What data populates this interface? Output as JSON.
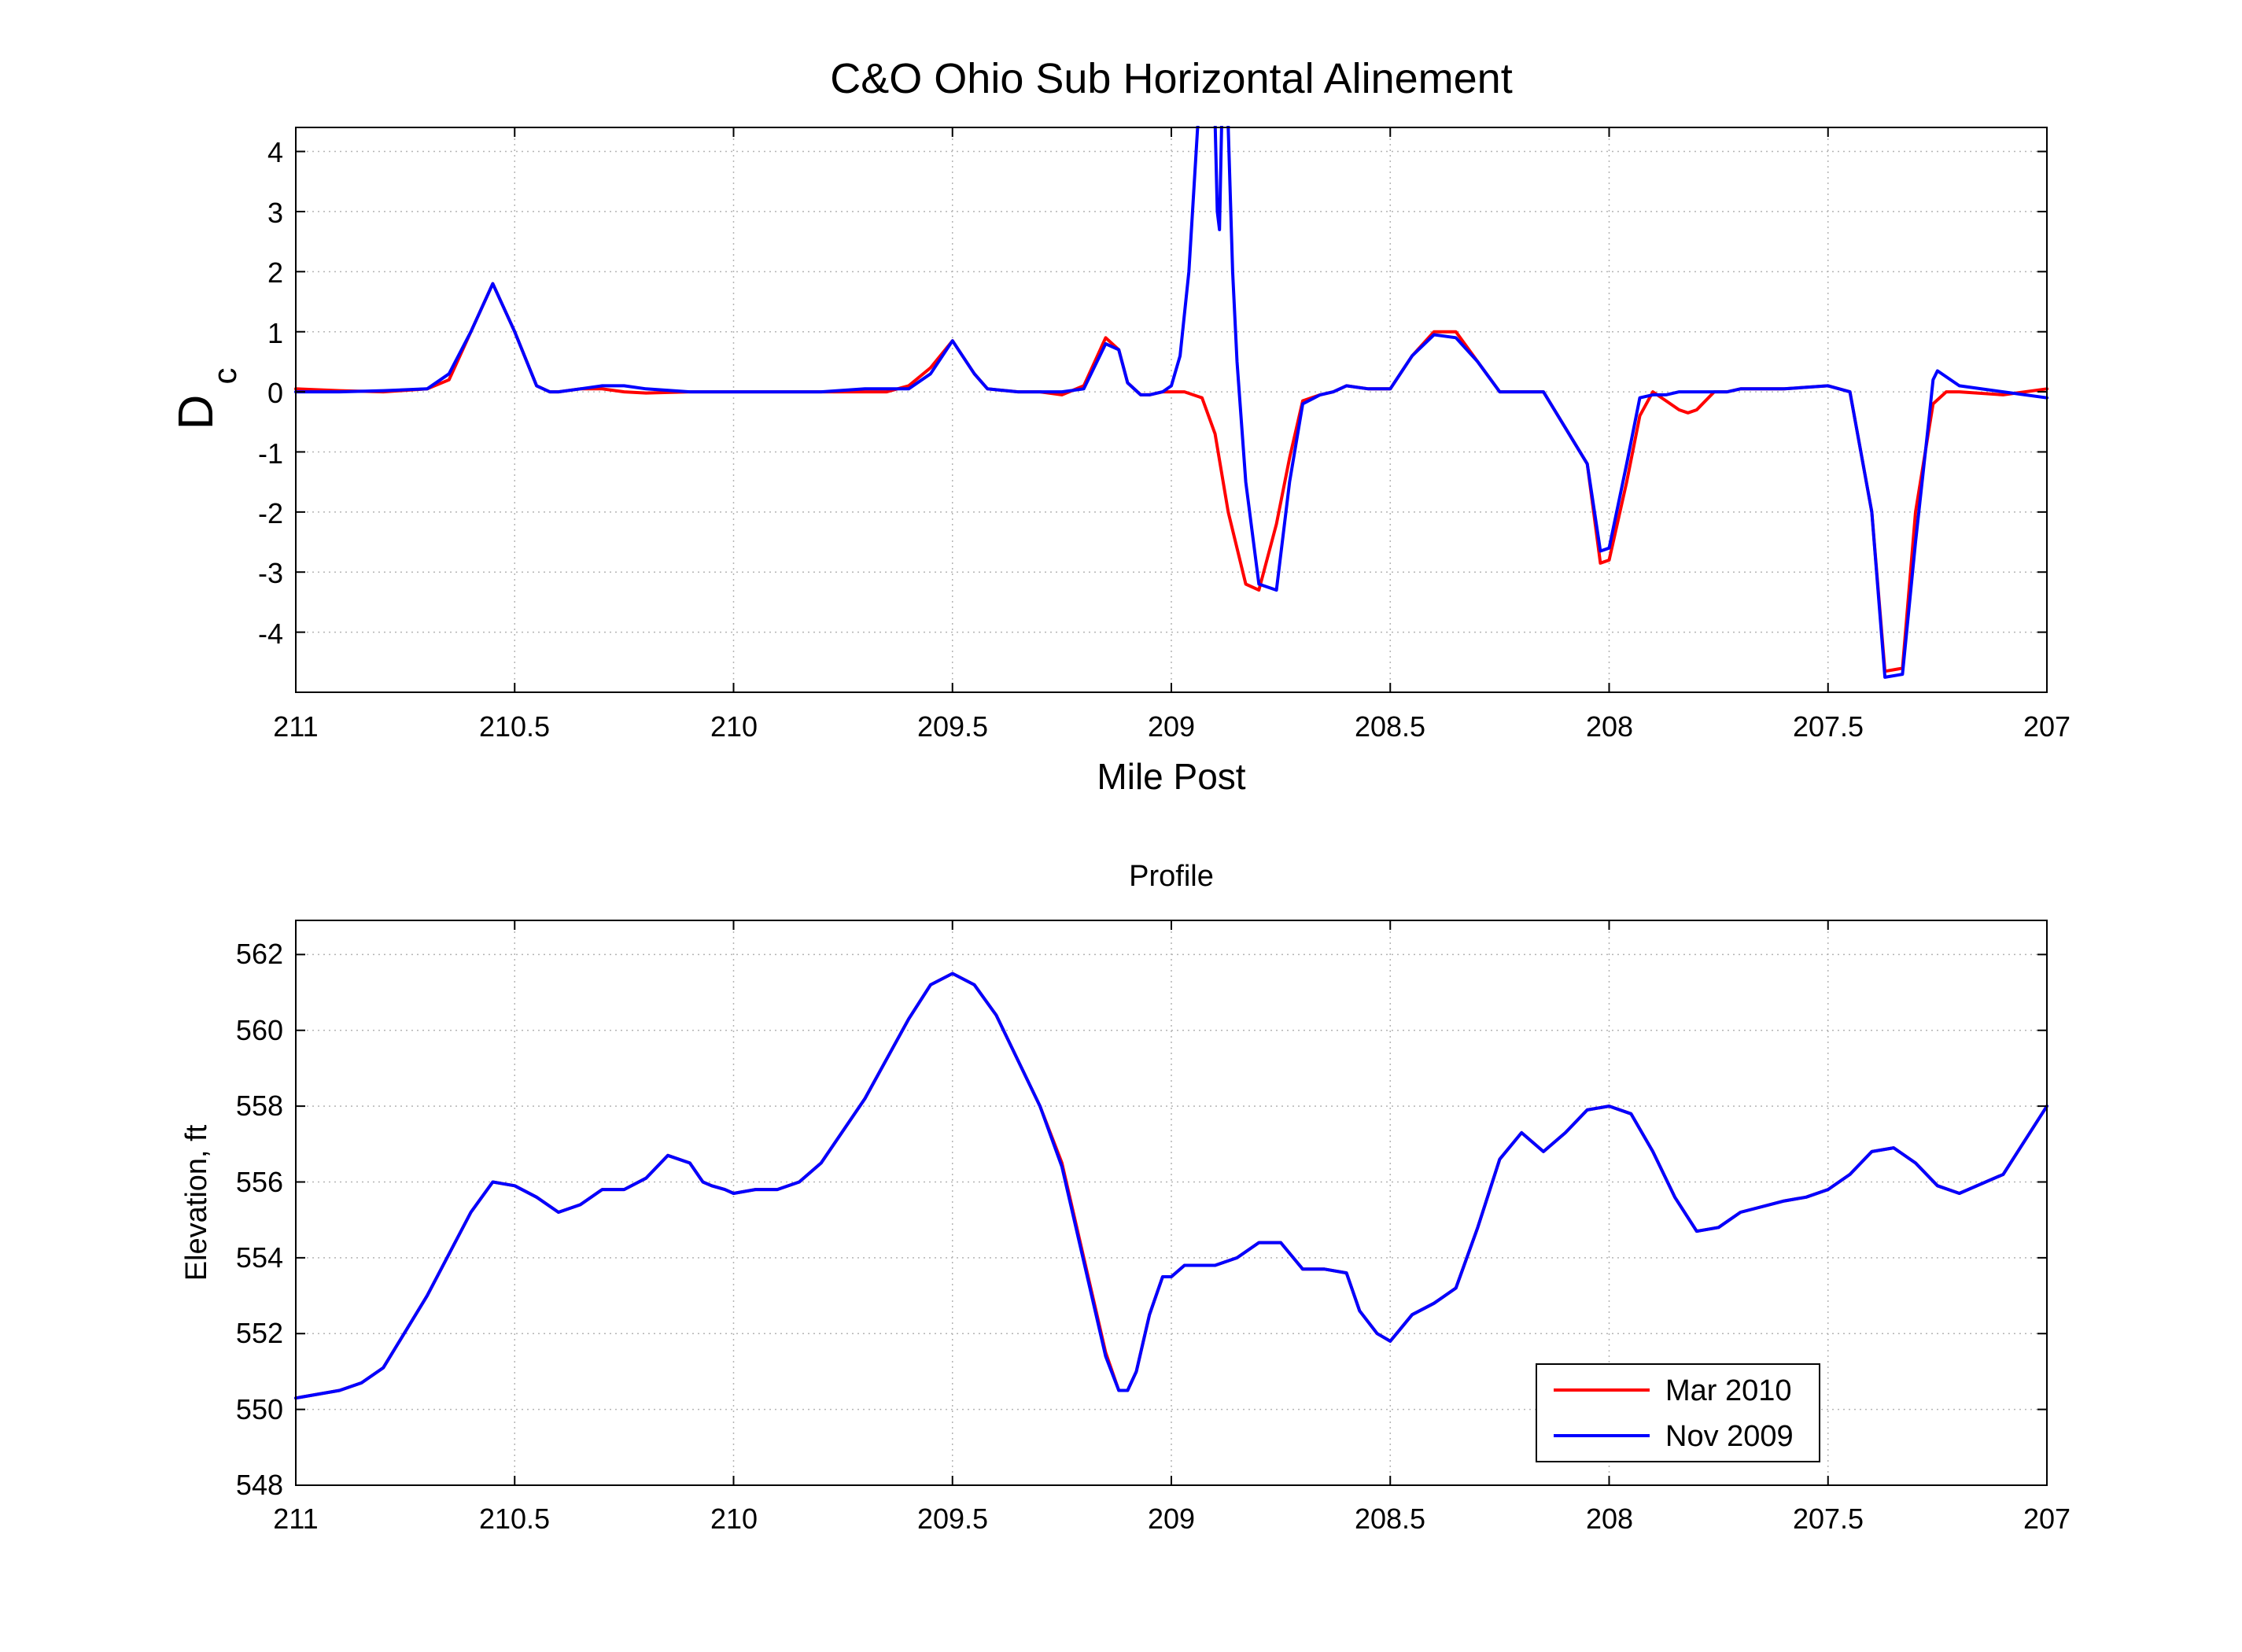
{
  "chart_data": [
    {
      "type": "line",
      "title": "C&O Ohio Sub Horizontal Alinement",
      "xlabel": "Mile Post",
      "ylabel": "D",
      "ylabel_subscript": "c",
      "xlim": [
        211,
        207
      ],
      "x_reversed": true,
      "ylim": [
        -5,
        4.4
      ],
      "xticks": [
        211,
        210.5,
        210,
        209.5,
        209,
        208.5,
        208,
        207.5,
        207
      ],
      "xtick_labels": [
        "211",
        "210.5",
        "210",
        "209.5",
        "209",
        "208.5",
        "208",
        "207.5",
        "207"
      ],
      "yticks": [
        -4,
        -3,
        -2,
        -1,
        0,
        1,
        2,
        3,
        4
      ],
      "ytick_labels": [
        "-4",
        "-3",
        "-2",
        "-1",
        "0",
        "1",
        "2",
        "3",
        "4"
      ],
      "grid": true,
      "series": [
        {
          "name": "Mar 2010",
          "color": "#ff0000",
          "x": [
            211,
            210.9,
            210.8,
            210.7,
            210.65,
            210.6,
            210.55,
            210.5,
            210.45,
            210.42,
            210.4,
            210.35,
            210.3,
            210.25,
            210.2,
            210.1,
            210,
            209.9,
            209.8,
            209.7,
            209.65,
            209.6,
            209.55,
            209.5,
            209.45,
            209.42,
            209.35,
            209.3,
            209.25,
            209.2,
            209.15,
            209.12,
            209.1,
            209.07,
            209.05,
            209.02,
            209,
            208.97,
            208.93,
            208.9,
            208.87,
            208.83,
            208.8,
            208.76,
            208.73,
            208.7,
            208.66,
            208.63,
            208.6,
            208.55,
            208.5,
            208.45,
            208.4,
            208.35,
            208.3,
            208.25,
            208.2,
            208.15,
            208.1,
            208.05,
            208.02,
            208,
            207.96,
            207.93,
            207.9,
            207.87,
            207.84,
            207.82,
            207.8,
            207.76,
            207.73,
            207.7,
            207.6,
            207.5,
            207.45,
            207.4,
            207.37,
            207.33,
            207.3,
            207.26,
            207.23,
            207.2,
            207.1,
            207
          ],
          "y": [
            0.05,
            0.02,
            0.0,
            0.05,
            0.2,
            1.0,
            1.8,
            1.0,
            0.1,
            0.0,
            0.0,
            0.05,
            0.05,
            0.0,
            -0.02,
            0.0,
            0.0,
            0.0,
            0.0,
            0.0,
            0.0,
            0.1,
            0.4,
            0.85,
            0.3,
            0.05,
            0.0,
            0.0,
            -0.05,
            0.1,
            0.9,
            0.7,
            0.15,
            -0.05,
            -0.05,
            0.0,
            0.0,
            0.0,
            -0.1,
            -0.7,
            -2.0,
            -3.2,
            -3.3,
            -2.2,
            -1.1,
            -0.15,
            -0.05,
            0.0,
            0.1,
            0.05,
            0.05,
            0.6,
            1.0,
            1.0,
            0.5,
            0.0,
            0.0,
            0.0,
            -0.6,
            -1.2,
            -2.85,
            -2.8,
            -1.5,
            -0.4,
            0.0,
            -0.15,
            -0.3,
            -0.35,
            -0.3,
            0.0,
            0.0,
            0.05,
            0.05,
            0.1,
            0.0,
            -2.0,
            -4.65,
            -4.6,
            -2.0,
            -0.2,
            0.0,
            0.0,
            -0.05,
            0.05
          ]
        },
        {
          "name": "Nov 2009",
          "color": "#0000ff",
          "x": [
            211,
            210.9,
            210.8,
            210.7,
            210.65,
            210.6,
            210.55,
            210.5,
            210.45,
            210.42,
            210.4,
            210.35,
            210.3,
            210.25,
            210.2,
            210.1,
            210,
            209.9,
            209.8,
            209.7,
            209.65,
            209.6,
            209.55,
            209.5,
            209.45,
            209.42,
            209.35,
            209.3,
            209.25,
            209.2,
            209.15,
            209.12,
            209.1,
            209.07,
            209.05,
            209.02,
            209,
            208.98,
            208.96,
            208.94,
            208.92,
            208.905,
            208.9,
            208.895,
            208.89,
            208.885,
            208.88,
            208.875,
            208.87,
            208.86,
            208.85,
            208.83,
            208.8,
            208.76,
            208.73,
            208.7,
            208.66,
            208.63,
            208.6,
            208.55,
            208.5,
            208.45,
            208.4,
            208.35,
            208.3,
            208.25,
            208.2,
            208.15,
            208.1,
            208.05,
            208.02,
            208,
            207.96,
            207.93,
            207.9,
            207.87,
            207.84,
            207.82,
            207.8,
            207.76,
            207.73,
            207.7,
            207.6,
            207.5,
            207.45,
            207.4,
            207.37,
            207.33,
            207.3,
            207.27,
            207.26,
            207.25,
            207.2,
            207.1,
            207
          ],
          "y": [
            0.0,
            0.0,
            0.02,
            0.05,
            0.3,
            1.0,
            1.8,
            1.0,
            0.1,
            0.0,
            0.0,
            0.05,
            0.1,
            0.1,
            0.05,
            0.0,
            0.0,
            0.0,
            0.0,
            0.05,
            0.05,
            0.05,
            0.3,
            0.85,
            0.3,
            0.05,
            0.0,
            0.0,
            0.0,
            0.05,
            0.8,
            0.7,
            0.15,
            -0.05,
            -0.05,
            0.0,
            0.1,
            0.6,
            2.0,
            4.4,
            5.5,
            5.5,
            4.5,
            3.0,
            2.7,
            4.5,
            5.5,
            5.5,
            4.4,
            2.0,
            0.5,
            -1.5,
            -3.2,
            -3.3,
            -1.5,
            -0.2,
            -0.05,
            0.0,
            0.1,
            0.05,
            0.05,
            0.6,
            0.95,
            0.9,
            0.5,
            0.0,
            0.0,
            0.0,
            -0.6,
            -1.2,
            -2.65,
            -2.6,
            -1.2,
            -0.1,
            -0.05,
            -0.05,
            0.0,
            0.0,
            0.0,
            0.0,
            0.0,
            0.05,
            0.05,
            0.1,
            0.0,
            -2.0,
            -4.75,
            -4.7,
            -2.5,
            -0.5,
            0.2,
            0.35,
            0.1,
            0.0,
            -0.1
          ]
        }
      ]
    },
    {
      "type": "line",
      "title": "Profile",
      "xlabel": "",
      "ylabel": "Elevation, ft",
      "xlim": [
        211,
        207
      ],
      "x_reversed": true,
      "ylim": [
        548,
        562.9
      ],
      "xticks": [
        211,
        210.5,
        210,
        209.5,
        209,
        208.5,
        208,
        207.5,
        207
      ],
      "xtick_labels": [
        "211",
        "210.5",
        "210",
        "209.5",
        "209",
        "208.5",
        "208",
        "207.5",
        "207"
      ],
      "yticks": [
        548,
        550,
        552,
        554,
        556,
        558,
        560,
        562
      ],
      "ytick_labels": [
        "548",
        "550",
        "552",
        "554",
        "556",
        "558",
        "560",
        "562"
      ],
      "grid": true,
      "legend_position": "bottom-right",
      "series": [
        {
          "name": "Mar 2010",
          "color": "#ff0000",
          "x": [
            211,
            210.9,
            210.85,
            210.8,
            210.7,
            210.6,
            210.55,
            210.5,
            210.45,
            210.4,
            210.35,
            210.3,
            210.25,
            210.2,
            210.15,
            210.1,
            210.07,
            210.05,
            210.02,
            210,
            209.95,
            209.9,
            209.85,
            209.8,
            209.7,
            209.6,
            209.55,
            209.5,
            209.45,
            209.4,
            209.3,
            209.25,
            209.2,
            209.15,
            209.12,
            209.1,
            209.08,
            209.05,
            209.02,
            209,
            208.97,
            208.95,
            208.9,
            208.85,
            208.8,
            208.75,
            208.7,
            208.65,
            208.6,
            208.57,
            208.53,
            208.5,
            208.45,
            208.4,
            208.35,
            208.3,
            208.25,
            208.2,
            208.15,
            208.1,
            208.05,
            208,
            207.95,
            207.9,
            207.85,
            207.8,
            207.75,
            207.7,
            207.6,
            207.55,
            207.5,
            207.45,
            207.4,
            207.35,
            207.3,
            207.25,
            207.2,
            207.1,
            207
          ],
          "y": [
            550.3,
            550.5,
            550.7,
            551.1,
            553.0,
            555.2,
            556.0,
            555.9,
            555.6,
            555.2,
            555.4,
            555.8,
            555.8,
            556.1,
            556.7,
            556.5,
            556.0,
            555.9,
            555.8,
            555.7,
            555.8,
            555.8,
            556.0,
            556.5,
            558.2,
            560.3,
            561.2,
            561.5,
            561.2,
            560.4,
            558.0,
            556.5,
            554.0,
            551.5,
            550.5,
            550.5,
            551.0,
            552.5,
            553.5,
            553.5,
            553.8,
            553.8,
            553.8,
            554.0,
            554.4,
            554.4,
            553.7,
            553.7,
            553.6,
            552.6,
            552.0,
            551.8,
            552.5,
            552.8,
            553.2,
            554.8,
            556.6,
            557.3,
            556.8,
            557.3,
            557.9,
            558.0,
            557.8,
            556.8,
            555.6,
            554.7,
            554.8,
            555.2,
            555.5,
            555.6,
            555.8,
            556.2,
            556.8,
            556.9,
            556.5,
            555.9,
            555.7,
            556.2,
            558.0
          ]
        },
        {
          "name": "Nov 2009",
          "color": "#0000ff",
          "x": [
            211,
            210.9,
            210.85,
            210.8,
            210.7,
            210.6,
            210.55,
            210.5,
            210.45,
            210.4,
            210.35,
            210.3,
            210.25,
            210.2,
            210.15,
            210.1,
            210.07,
            210.05,
            210.02,
            210,
            209.95,
            209.9,
            209.85,
            209.8,
            209.7,
            209.6,
            209.55,
            209.5,
            209.45,
            209.4,
            209.3,
            209.25,
            209.2,
            209.15,
            209.12,
            209.1,
            209.08,
            209.05,
            209.02,
            209,
            208.97,
            208.95,
            208.9,
            208.85,
            208.8,
            208.75,
            208.7,
            208.65,
            208.6,
            208.57,
            208.53,
            208.5,
            208.45,
            208.4,
            208.35,
            208.3,
            208.25,
            208.2,
            208.15,
            208.1,
            208.05,
            208,
            207.95,
            207.9,
            207.85,
            207.8,
            207.75,
            207.7,
            207.6,
            207.55,
            207.5,
            207.45,
            207.4,
            207.35,
            207.3,
            207.25,
            207.2,
            207.1,
            207
          ],
          "y": [
            550.3,
            550.5,
            550.7,
            551.1,
            553.0,
            555.2,
            556.0,
            555.9,
            555.6,
            555.2,
            555.4,
            555.8,
            555.8,
            556.1,
            556.7,
            556.5,
            556.0,
            555.9,
            555.8,
            555.7,
            555.8,
            555.8,
            556.0,
            556.5,
            558.2,
            560.3,
            561.2,
            561.5,
            561.2,
            560.4,
            558.0,
            556.4,
            553.9,
            551.4,
            550.5,
            550.5,
            551.0,
            552.5,
            553.5,
            553.5,
            553.8,
            553.8,
            553.8,
            554.0,
            554.4,
            554.4,
            553.7,
            553.7,
            553.6,
            552.6,
            552.0,
            551.8,
            552.5,
            552.8,
            553.2,
            554.8,
            556.6,
            557.3,
            556.8,
            557.3,
            557.9,
            558.0,
            557.8,
            556.8,
            555.6,
            554.7,
            554.8,
            555.2,
            555.5,
            555.6,
            555.8,
            556.2,
            556.8,
            556.9,
            556.5,
            555.9,
            555.7,
            556.2,
            558.0
          ]
        }
      ]
    }
  ]
}
